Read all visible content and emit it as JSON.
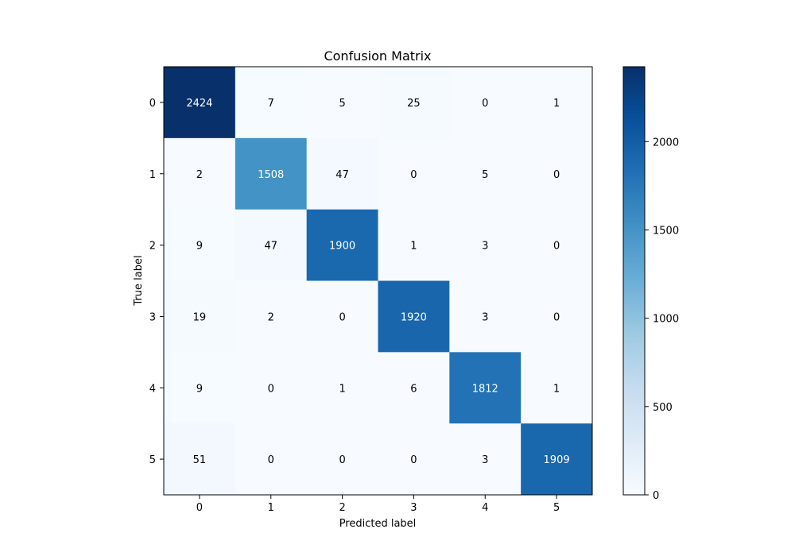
{
  "chart_data": {
    "type": "heatmap",
    "title": "Confusion Matrix",
    "xlabel": "Predicted label",
    "ylabel": "True label",
    "x_categories": [
      "0",
      "1",
      "2",
      "3",
      "4",
      "5"
    ],
    "y_categories": [
      "0",
      "1",
      "2",
      "3",
      "4",
      "5"
    ],
    "values": [
      [
        2424,
        7,
        5,
        25,
        0,
        1
      ],
      [
        2,
        1508,
        47,
        0,
        5,
        0
      ],
      [
        9,
        47,
        1900,
        1,
        3,
        0
      ],
      [
        19,
        2,
        0,
        1920,
        3,
        0
      ],
      [
        9,
        0,
        1,
        6,
        1812,
        1
      ],
      [
        51,
        0,
        0,
        0,
        3,
        1909
      ]
    ],
    "colormap": "Blues",
    "colorbar": {
      "min": 0,
      "max": 2424,
      "ticks": [
        0,
        500,
        1000,
        1500,
        2000
      ]
    },
    "grid": false
  }
}
